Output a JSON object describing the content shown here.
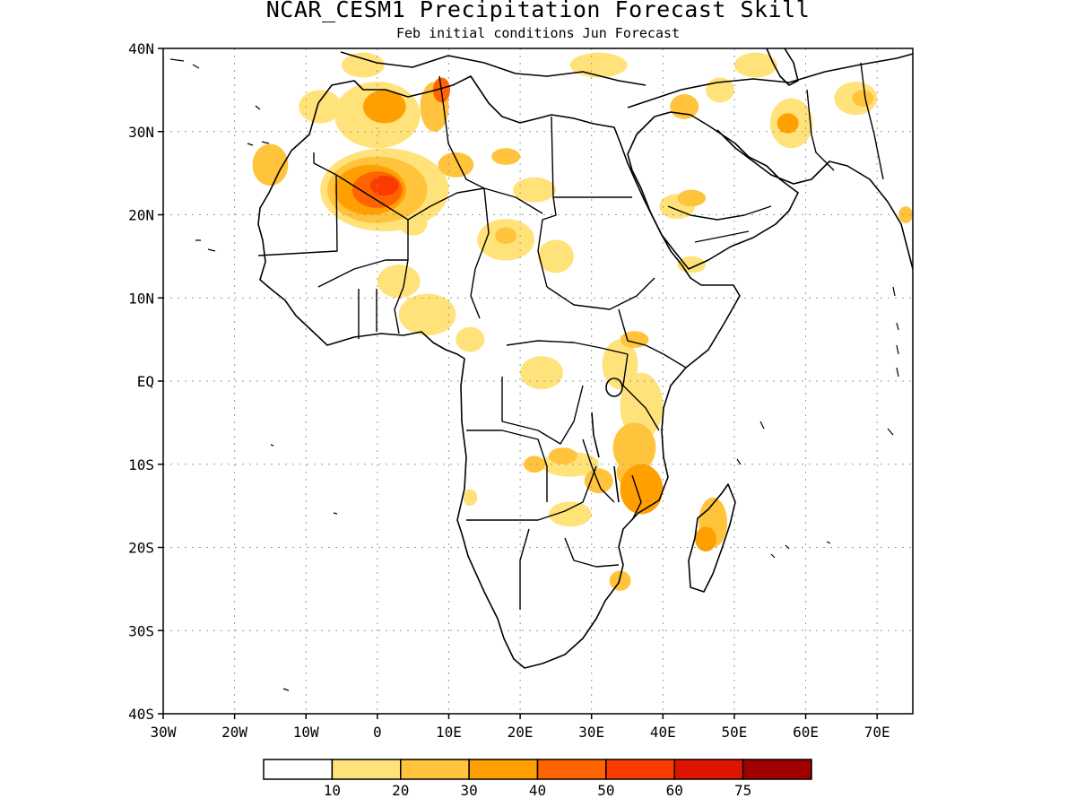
{
  "title": "NCAR_CESM1 Precipitation Forecast Skill",
  "subtitle": "Feb initial conditions  Jun Forecast",
  "map": {
    "lon_range": [
      -30,
      75
    ],
    "lat_range": [
      -40,
      40
    ],
    "x_ticks": [
      {
        "lon": -30,
        "label": "30W"
      },
      {
        "lon": -20,
        "label": "20W"
      },
      {
        "lon": -10,
        "label": "10W"
      },
      {
        "lon": 0,
        "label": "0"
      },
      {
        "lon": 10,
        "label": "10E"
      },
      {
        "lon": 20,
        "label": "20E"
      },
      {
        "lon": 30,
        "label": "30E"
      },
      {
        "lon": 40,
        "label": "40E"
      },
      {
        "lon": 50,
        "label": "50E"
      },
      {
        "lon": 60,
        "label": "60E"
      },
      {
        "lon": 70,
        "label": "70E"
      }
    ],
    "y_ticks": [
      {
        "lat": 40,
        "label": "40N"
      },
      {
        "lat": 30,
        "label": "30N"
      },
      {
        "lat": 20,
        "label": "20N"
      },
      {
        "lat": 10,
        "label": "10N"
      },
      {
        "lat": 0,
        "label": "EQ"
      },
      {
        "lat": -10,
        "label": "10S"
      },
      {
        "lat": -20,
        "label": "20S"
      },
      {
        "lat": -30,
        "label": "30S"
      },
      {
        "lat": -40,
        "label": "40S"
      }
    ],
    "grid": true,
    "grid_style": "dotted"
  },
  "colorbar": {
    "colors": [
      "#ffffff",
      "#ffe27a",
      "#ffc33c",
      "#ffa000",
      "#ff6400",
      "#fa3c00",
      "#dc1400",
      "#a00000"
    ],
    "labels": [
      "10",
      "20",
      "30",
      "40",
      "50",
      "60",
      "75"
    ]
  },
  "skill_regions": [
    {
      "lon": -15,
      "lat": 26,
      "rx": 2.5,
      "ry": 2.5,
      "level": 2
    },
    {
      "lon": -8,
      "lat": 33,
      "rx": 3,
      "ry": 2,
      "level": 1
    },
    {
      "lon": 0,
      "lat": 32,
      "rx": 6,
      "ry": 4,
      "level": 1
    },
    {
      "lon": 1,
      "lat": 33,
      "rx": 3,
      "ry": 2,
      "level": 3
    },
    {
      "lon": 8,
      "lat": 33,
      "rx": 2,
      "ry": 3,
      "level": 2
    },
    {
      "lon": 9,
      "lat": 35,
      "rx": 1.2,
      "ry": 1.5,
      "level": 4
    },
    {
      "lon": -2,
      "lat": 38,
      "rx": 3,
      "ry": 1.5,
      "level": 1
    },
    {
      "lon": 1,
      "lat": 23,
      "rx": 9,
      "ry": 5,
      "level": 1
    },
    {
      "lon": 0,
      "lat": 23,
      "rx": 7,
      "ry": 4,
      "level": 2
    },
    {
      "lon": -1,
      "lat": 23,
      "rx": 5,
      "ry": 3,
      "level": 3
    },
    {
      "lon": 0,
      "lat": 23,
      "rx": 3.5,
      "ry": 2.2,
      "level": 4
    },
    {
      "lon": 1,
      "lat": 23.5,
      "rx": 2,
      "ry": 1.2,
      "level": 5
    },
    {
      "lon": 11,
      "lat": 26,
      "rx": 2.5,
      "ry": 1.5,
      "level": 2
    },
    {
      "lon": 5,
      "lat": 19,
      "rx": 2,
      "ry": 1.5,
      "level": 1
    },
    {
      "lon": 18,
      "lat": 27,
      "rx": 2,
      "ry": 1,
      "level": 2
    },
    {
      "lon": 22,
      "lat": 23,
      "rx": 3,
      "ry": 1.5,
      "level": 1
    },
    {
      "lon": 18,
      "lat": 17,
      "rx": 4,
      "ry": 2.5,
      "level": 1
    },
    {
      "lon": 18,
      "lat": 17.5,
      "rx": 1.5,
      "ry": 1,
      "level": 2
    },
    {
      "lon": 25,
      "lat": 15,
      "rx": 2.5,
      "ry": 2,
      "level": 1
    },
    {
      "lon": 3,
      "lat": 12,
      "rx": 3,
      "ry": 2,
      "level": 1
    },
    {
      "lon": 7,
      "lat": 8,
      "rx": 4,
      "ry": 2.5,
      "level": 1
    },
    {
      "lon": 13,
      "lat": 5,
      "rx": 2,
      "ry": 1.5,
      "level": 1
    },
    {
      "lon": 23,
      "lat": 1,
      "rx": 3,
      "ry": 2,
      "level": 1
    },
    {
      "lon": 34,
      "lat": 2,
      "rx": 2.5,
      "ry": 3,
      "level": 1
    },
    {
      "lon": 36,
      "lat": 5,
      "rx": 2,
      "ry": 1,
      "level": 2
    },
    {
      "lon": 37,
      "lat": -3,
      "rx": 3,
      "ry": 4,
      "level": 1
    },
    {
      "lon": 36,
      "lat": -8,
      "rx": 3,
      "ry": 3,
      "level": 2
    },
    {
      "lon": 37,
      "lat": -13,
      "rx": 3,
      "ry": 3,
      "level": 3
    },
    {
      "lon": 36,
      "lat": -11,
      "rx": 2.5,
      "ry": 2,
      "level": 2
    },
    {
      "lon": 27,
      "lat": -10,
      "rx": 4,
      "ry": 1.5,
      "level": 1
    },
    {
      "lon": 26,
      "lat": -9,
      "rx": 2,
      "ry": 1,
      "level": 2
    },
    {
      "lon": 22,
      "lat": -10,
      "rx": 1.5,
      "ry": 1,
      "level": 2
    },
    {
      "lon": 31,
      "lat": -12,
      "rx": 2,
      "ry": 1.5,
      "level": 2
    },
    {
      "lon": 27,
      "lat": -16,
      "rx": 3,
      "ry": 1.5,
      "level": 1
    },
    {
      "lon": 13,
      "lat": -14,
      "rx": 1,
      "ry": 1,
      "level": 1
    },
    {
      "lon": 47,
      "lat": -17,
      "rx": 2,
      "ry": 3,
      "level": 2
    },
    {
      "lon": 46,
      "lat": -19,
      "rx": 1.5,
      "ry": 1.5,
      "level": 3
    },
    {
      "lon": 34,
      "lat": -24,
      "rx": 1.5,
      "ry": 1.2,
      "level": 2
    },
    {
      "lon": 42,
      "lat": 21,
      "rx": 2.5,
      "ry": 1.5,
      "level": 1
    },
    {
      "lon": 44,
      "lat": 22,
      "rx": 2,
      "ry": 1,
      "level": 2
    },
    {
      "lon": 44,
      "lat": 14,
      "rx": 2,
      "ry": 1,
      "level": 1
    },
    {
      "lon": 48,
      "lat": 35,
      "rx": 2,
      "ry": 1.5,
      "level": 1
    },
    {
      "lon": 43,
      "lat": 33,
      "rx": 2,
      "ry": 1.5,
      "level": 2
    },
    {
      "lon": 58,
      "lat": 31,
      "rx": 3,
      "ry": 3,
      "level": 1
    },
    {
      "lon": 57.5,
      "lat": 31,
      "rx": 1.5,
      "ry": 1.2,
      "level": 3
    },
    {
      "lon": 67,
      "lat": 34,
      "rx": 3,
      "ry": 2,
      "level": 1
    },
    {
      "lon": 68,
      "lat": 34,
      "rx": 1.5,
      "ry": 1,
      "level": 2
    },
    {
      "lon": 31,
      "lat": 38,
      "rx": 4,
      "ry": 1.5,
      "level": 1
    },
    {
      "lon": 53,
      "lat": 38,
      "rx": 3,
      "ry": 1.5,
      "level": 1
    },
    {
      "lon": 74,
      "lat": 20,
      "rx": 1,
      "ry": 1,
      "level": 2
    }
  ]
}
